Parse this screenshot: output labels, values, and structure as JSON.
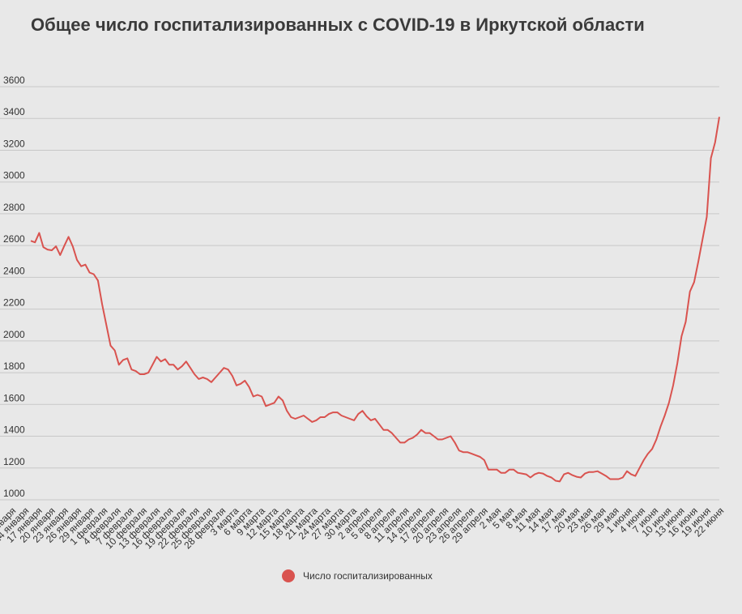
{
  "title": "Общее число госпитализированных с COVID-19 в Иркутской области",
  "colors": {
    "line": "#d9534f",
    "grid": "#c8c8c8",
    "text": "#333333"
  },
  "chart_data": {
    "type": "line",
    "title": "Общее число госпитализированных с COVID-19 в Иркутской области",
    "xlabel": "",
    "ylabel": "",
    "ylim": [
      1000,
      3600
    ],
    "yticks": [
      1000,
      1200,
      1400,
      1600,
      1800,
      2000,
      2200,
      2400,
      2600,
      2800,
      3000,
      3200,
      3400,
      3600
    ],
    "grid": true,
    "legend": "bottom-center",
    "x_tick_labels": [
      "11 января",
      "14 января",
      "17 января",
      "20 января",
      "23 января",
      "26 января",
      "29 января",
      "1 февраля",
      "4 февраля",
      "7 февраля",
      "10 февраля",
      "13 февраля",
      "16 февраля",
      "19 февраля",
      "22 февраля",
      "25 февраля",
      "28 февраля",
      "3 марта",
      "6 марта",
      "9 марта",
      "12 марта",
      "15 марта",
      "18 марта",
      "21 марта",
      "24 марта",
      "27 марта",
      "30 марта",
      "2 апреля",
      "5 апреля",
      "8 апреля",
      "11 апреля",
      "14 апреля",
      "17 апреля",
      "20 апреля",
      "23 апреля",
      "26 апреля",
      "29 апреля",
      "2 мая",
      "5 мая",
      "8 мая",
      "11 мая",
      "14 мая",
      "17 мая",
      "20 мая",
      "23 мая",
      "26 мая",
      "29 мая",
      "1 июня",
      "4 июня",
      "7 июня",
      "10 июня",
      "13 июня",
      "16 июня",
      "19 июня",
      "22 июня"
    ],
    "series": [
      {
        "name": "Число госпитализированных",
        "values": [
          2630,
          2620,
          2680,
          2590,
          2575,
          2570,
          2595,
          2540,
          2600,
          2655,
          2595,
          2510,
          2470,
          2480,
          2430,
          2420,
          2380,
          2230,
          2100,
          1970,
          1940,
          1850,
          1880,
          1890,
          1820,
          1810,
          1790,
          1790,
          1800,
          1850,
          1900,
          1870,
          1885,
          1850,
          1850,
          1820,
          1840,
          1870,
          1830,
          1790,
          1760,
          1770,
          1760,
          1740,
          1770,
          1800,
          1830,
          1820,
          1780,
          1720,
          1730,
          1750,
          1710,
          1650,
          1660,
          1650,
          1590,
          1600,
          1610,
          1650,
          1625,
          1560,
          1520,
          1510,
          1520,
          1530,
          1510,
          1490,
          1500,
          1520,
          1520,
          1540,
          1550,
          1550,
          1530,
          1520,
          1510,
          1500,
          1540,
          1560,
          1525,
          1500,
          1510,
          1475,
          1440,
          1440,
          1420,
          1390,
          1360,
          1360,
          1380,
          1390,
          1410,
          1440,
          1420,
          1420,
          1400,
          1380,
          1380,
          1390,
          1400,
          1360,
          1310,
          1300,
          1300,
          1290,
          1280,
          1270,
          1250,
          1190,
          1190,
          1190,
          1170,
          1170,
          1190,
          1190,
          1170,
          1165,
          1160,
          1140,
          1160,
          1170,
          1165,
          1150,
          1140,
          1120,
          1115,
          1160,
          1170,
          1155,
          1145,
          1140,
          1165,
          1175,
          1175,
          1180,
          1165,
          1150,
          1130,
          1130,
          1130,
          1140,
          1180,
          1160,
          1150,
          1200,
          1250,
          1290,
          1320,
          1380,
          1460,
          1530,
          1610,
          1720,
          1860,
          2030,
          2120,
          2310,
          2370,
          2500,
          2640,
          2780,
          3150,
          3250,
          3410
        ]
      }
    ]
  }
}
